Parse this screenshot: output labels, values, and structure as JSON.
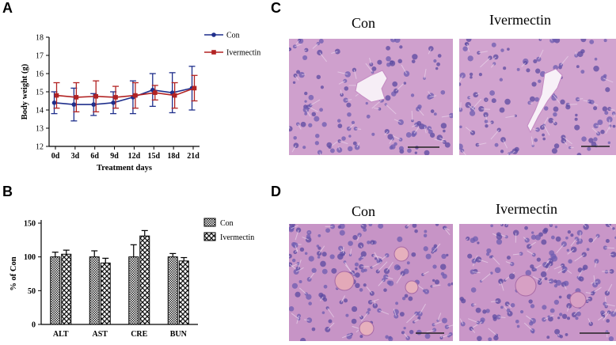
{
  "figure": {
    "panels": {
      "A": "A",
      "B": "B",
      "C": "C",
      "D": "D"
    },
    "micrographs": {
      "C_left_label": "Con",
      "C_right_label": "Ivermectin",
      "D_left_label": "Con",
      "D_right_label": "Ivermectin"
    }
  },
  "chart_data": [
    {
      "type": "line",
      "panel": "A",
      "xlabel": "Treatment days",
      "ylabel": "Body weight (g)",
      "categories": [
        "0d",
        "3d",
        "6d",
        "9d",
        "12d",
        "15d",
        "18d",
        "21d"
      ],
      "yticks": [
        "12",
        "13",
        "14",
        "15",
        "16",
        "17",
        "18"
      ],
      "ylim": [
        12,
        18
      ],
      "legend_position": "right",
      "series": [
        {
          "name": "Con",
          "color": "#1f2f8c",
          "marker": "circle",
          "values": [
            14.4,
            14.3,
            14.3,
            14.4,
            14.7,
            15.1,
            14.95,
            15.2
          ],
          "errors": [
            0.6,
            0.9,
            0.6,
            0.6,
            0.9,
            0.9,
            1.1,
            1.2
          ]
        },
        {
          "name": "Ivermectin",
          "color": "#b22222",
          "marker": "square",
          "values": [
            14.8,
            14.7,
            14.75,
            14.7,
            14.8,
            14.95,
            14.8,
            15.2
          ],
          "errors": [
            0.7,
            0.8,
            0.85,
            0.6,
            0.7,
            0.4,
            0.7,
            0.7
          ]
        }
      ]
    },
    {
      "type": "bar",
      "panel": "B",
      "xlabel": "",
      "ylabel": "% of Con",
      "categories": [
        "ALT",
        "AST",
        "CRE",
        "BUN"
      ],
      "yticks": [
        "0",
        "50",
        "100",
        "150"
      ],
      "ylim": [
        0,
        150
      ],
      "legend_position": "right",
      "series": [
        {
          "name": "Con",
          "pattern": "fine-check",
          "values": [
            100,
            100,
            100,
            100
          ],
          "errors": [
            7,
            9,
            18,
            5
          ]
        },
        {
          "name": "Ivermectin",
          "pattern": "coarse-check",
          "values": [
            104,
            91,
            131,
            94
          ],
          "errors": [
            6,
            7,
            8,
            5
          ]
        }
      ]
    }
  ]
}
